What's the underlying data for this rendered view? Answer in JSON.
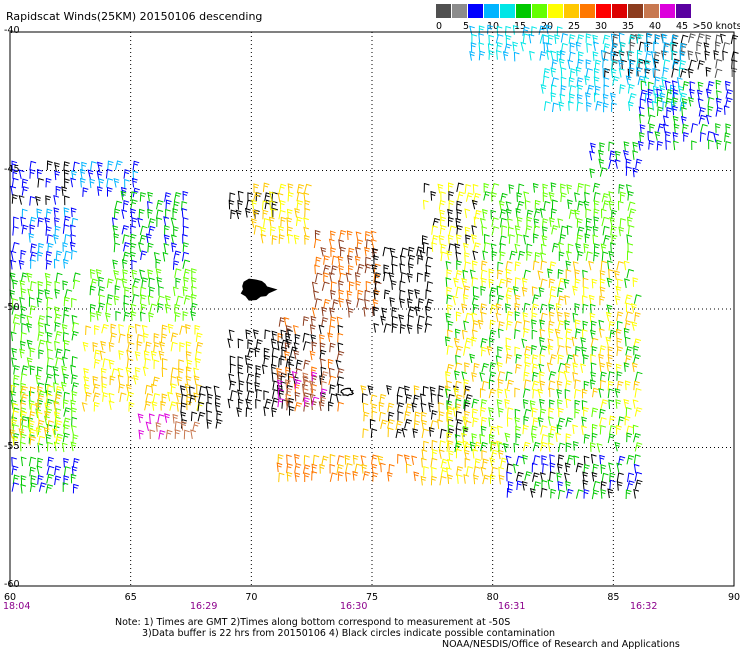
{
  "header": {
    "title": "Rapidscat Winds(25KM) 20150106 descending"
  },
  "legend": {
    "colors": [
      "#505050",
      "#8c8c8c",
      "#0000ff",
      "#00b4ff",
      "#00e6e6",
      "#00c800",
      "#64ff00",
      "#ffff00",
      "#ffc800",
      "#ff7800",
      "#ff0000",
      "#dc0000",
      "#8c3c1e",
      "#c87850",
      "#dc00dc",
      "#5a00a0"
    ],
    "labels": [
      "0",
      "5",
      "10",
      "15",
      "20",
      "25",
      "30",
      "35",
      "40",
      "45",
      ">50 knots"
    ]
  },
  "axes": {
    "y_labels": [
      "-40",
      "-45",
      "-50",
      "-55",
      "-60"
    ],
    "x_labels": [
      "60",
      "65",
      "70",
      "75",
      "80",
      "85",
      "90"
    ]
  },
  "times": [
    "18:04",
    "16:29",
    "16:30",
    "16:31",
    "16:32"
  ],
  "notes": [
    "Note: 1) Times are GMT 2)Times along bottom correspond to measurement at -50S",
    "3)Data buffer is 22 hrs from 20150106 4) Black circles indicate possible contamination"
  ],
  "credit": "NOAA/NESDIS/Office of Research and Applications",
  "map_data": {
    "lon_range": [
      60,
      90
    ],
    "lat_range": [
      -60,
      -40
    ],
    "regions": [
      {
        "lon": [
          60.0,
          62.5
        ],
        "lat": [
          -44.9,
          -46.6
        ],
        "colors": [
          "#000000",
          "#0000ff"
        ],
        "dir": 270
      },
      {
        "lon": [
          62.5,
          65.5
        ],
        "lat": [
          -44.9,
          -46.3
        ],
        "colors": [
          "#0000ff",
          "#00b4ff"
        ],
        "dir": 270
      },
      {
        "lon": [
          60.0,
          62.7
        ],
        "lat": [
          -46.6,
          -48.9
        ],
        "colors": [
          "#0000ff",
          "#00b4ff"
        ],
        "dir": 270
      },
      {
        "lon": [
          60.0,
          62.7
        ],
        "lat": [
          -48.9,
          -55.5
        ],
        "colors": [
          "#00c800",
          "#64ff00"
        ],
        "dir": 270
      },
      {
        "lon": [
          60.0,
          62.0
        ],
        "lat": [
          -53.0,
          -55.3
        ],
        "colors": [
          "#ffff00",
          "#ffc800"
        ],
        "dir": 270
      },
      {
        "lon": [
          60.0,
          62.7
        ],
        "lat": [
          -55.6,
          -57.0
        ],
        "colors": [
          "#00c800",
          "#0000ff"
        ],
        "dir": 270
      },
      {
        "lon": [
          64.2,
          67.5
        ],
        "lat": [
          -46.0,
          -48.8
        ],
        "colors": [
          "#0000ff",
          "#00c800"
        ],
        "dir": 270
      },
      {
        "lon": [
          63.2,
          67.8
        ],
        "lat": [
          -48.8,
          -50.8
        ],
        "colors": [
          "#00c800",
          "#64ff00"
        ],
        "dir": 270
      },
      {
        "lon": [
          63.0,
          68.0
        ],
        "lat": [
          -50.8,
          -53.8
        ],
        "colors": [
          "#ffff00",
          "#ffc800"
        ],
        "dir": 270
      },
      {
        "lon": [
          67.0,
          68.8
        ],
        "lat": [
          -53.0,
          -54.5
        ],
        "colors": [
          "#000000"
        ],
        "dir": 270
      },
      {
        "lon": [
          65.3,
          67.8
        ],
        "lat": [
          -54.0,
          -54.8
        ],
        "colors": [
          "#c87850",
          "#dc00dc"
        ],
        "dir": 270
      },
      {
        "lon": [
          69.0,
          71.0
        ],
        "lat": [
          -46.0,
          -47.0
        ],
        "colors": [
          "#000000"
        ],
        "dir": 270
      },
      {
        "lon": [
          70.0,
          72.5
        ],
        "lat": [
          -45.7,
          -47.8
        ],
        "colors": [
          "#ffff00",
          "#ffc800"
        ],
        "dir": 270
      },
      {
        "lon": [
          72.5,
          75.3
        ],
        "lat": [
          -47.4,
          -50.5
        ],
        "colors": [
          "#ff7800",
          "#8c3c1e"
        ],
        "dir": 270
      },
      {
        "lon": [
          71.0,
          74.0
        ],
        "lat": [
          -50.5,
          -53.8
        ],
        "colors": [
          "#000000",
          "#ff7800",
          "#8c3c1e"
        ],
        "dir": 270
      },
      {
        "lon": [
          69.0,
          72.0
        ],
        "lat": [
          -51.0,
          -54.0
        ],
        "colors": [
          "#000000"
        ],
        "dir": 270
      },
      {
        "lon": [
          71.0,
          73.0
        ],
        "lat": [
          -52.5,
          -53.8
        ],
        "colors": [
          "#c87850",
          "#dc00dc"
        ],
        "dir": 270
      },
      {
        "lon": [
          71.0,
          77.0
        ],
        "lat": [
          -55.5,
          -56.5
        ],
        "colors": [
          "#ff7800",
          "#ffc800"
        ],
        "dir": 270
      },
      {
        "lon": [
          75.0,
          77.6
        ],
        "lat": [
          -48.0,
          -51.0
        ],
        "colors": [
          "#000000"
        ],
        "dir": 270
      },
      {
        "lon": [
          74.5,
          79.0
        ],
        "lat": [
          -53.0,
          -55.0
        ],
        "colors": [
          "#000000",
          "#ffc800"
        ],
        "dir": 270
      },
      {
        "lon": [
          77.0,
          80.5
        ],
        "lat": [
          -55.0,
          -56.5
        ],
        "colors": [
          "#ffff00",
          "#ffc800"
        ],
        "dir": 270
      },
      {
        "lon": [
          77.0,
          79.5
        ],
        "lat": [
          -45.7,
          -48.5
        ],
        "colors": [
          "#000000",
          "#ffff00"
        ],
        "dir": 270
      },
      {
        "lon": [
          79.5,
          86.0
        ],
        "lat": [
          -45.7,
          -48.5
        ],
        "colors": [
          "#00c800",
          "#64ff00"
        ],
        "dir": 270
      },
      {
        "lon": [
          78.0,
          86.0
        ],
        "lat": [
          -48.5,
          -53.5
        ],
        "colors": [
          "#ffff00",
          "#ffc800",
          "#00c800"
        ],
        "dir": 270
      },
      {
        "lon": [
          78.0,
          86.0
        ],
        "lat": [
          -53.5,
          -55.5
        ],
        "colors": [
          "#00c800",
          "#64ff00",
          "#ffff00"
        ],
        "dir": 270
      },
      {
        "lon": [
          80.5,
          86.0
        ],
        "lat": [
          -55.5,
          -57.0
        ],
        "colors": [
          "#00c800",
          "#0000ff",
          "#000000"
        ],
        "dir": 270
      },
      {
        "lon": [
          84.5,
          90.0
        ],
        "lat": [
          -40.3,
          -42.0
        ],
        "colors": [
          "#000000",
          "#505050"
        ],
        "dir": 270
      },
      {
        "lon": [
          82.0,
          88.0
        ],
        "lat": [
          -40.3,
          -43.0
        ],
        "colors": [
          "#00e6e6",
          "#00b4ff"
        ],
        "dir": 270
      },
      {
        "lon": [
          86.0,
          90.0
        ],
        "lat": [
          -42.0,
          -44.5
        ],
        "colors": [
          "#0000ff",
          "#00c800"
        ],
        "dir": 270
      },
      {
        "lon": [
          79.0,
          83.0
        ],
        "lat": [
          -40.0,
          -41.2
        ],
        "colors": [
          "#00b4ff",
          "#00e6e6"
        ],
        "dir": 270
      },
      {
        "lon": [
          84.0,
          86.0
        ],
        "lat": [
          -44.2,
          -45.5
        ],
        "colors": [
          "#0000ff",
          "#00c800"
        ],
        "dir": 270
      }
    ],
    "islands": [
      {
        "lon": 70.2,
        "lat": -49.3,
        "size": 1.0
      },
      {
        "lon": 74.0,
        "lat": -53.0,
        "size": 0.35
      }
    ]
  }
}
